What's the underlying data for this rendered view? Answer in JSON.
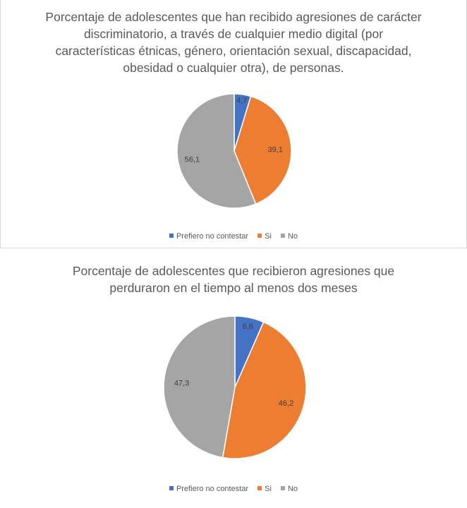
{
  "colors": {
    "prefiero": "#4472C4",
    "si": "#ED7D31",
    "no": "#A5A5A5",
    "text": "#595959",
    "label": "#404040"
  },
  "chart_data": [
    {
      "type": "pie",
      "title_lines": [
        "Porcentaje de adolescentes que han recibido agresiones de carácter",
        "discriminatorio, a través de cualquier medio digital (por",
        "características étnicas, género, orientación sexual, discapacidad,",
        "obesidad o cualquier otra), de personas."
      ],
      "categories": [
        "Prefiero no contestar",
        "Si",
        "No"
      ],
      "values": [
        4.7,
        39.1,
        56.1
      ],
      "value_labels": [
        "4,7",
        "39,1",
        "56,1"
      ],
      "legend_position": "bottom"
    },
    {
      "type": "pie",
      "title_lines": [
        "Porcentaje de adolescentes que recibieron agresiones que",
        "perduraron en el tiempo al menos dos meses"
      ],
      "categories": [
        "Prefiero no contestar",
        "Si",
        "No"
      ],
      "values": [
        6.6,
        46.2,
        47.3
      ],
      "value_labels": [
        "6,6",
        "46,2",
        "47,3"
      ],
      "legend_position": "bottom"
    }
  ]
}
